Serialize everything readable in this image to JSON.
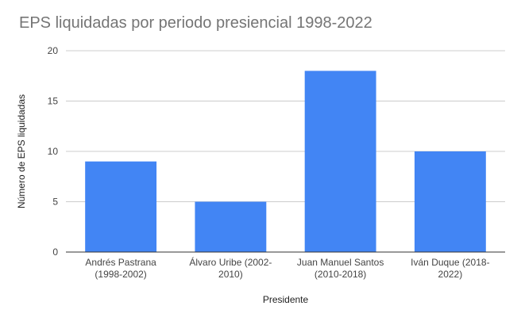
{
  "chart_data": {
    "type": "bar",
    "title": "EPS liquidadas por periodo presiencial 1998-2022",
    "xlabel": "Presidente",
    "ylabel": "Número de EPS liquidadas",
    "categories": [
      [
        "Andrés Pastrana",
        "(1998-2002)"
      ],
      [
        "Álvaro Uribe (2002-",
        "2010)"
      ],
      [
        "Juan Manuel Santos",
        "(2010-2018)"
      ],
      [
        "Iván Duque (2018-",
        "2022)"
      ]
    ],
    "values": [
      9,
      5,
      18,
      10
    ],
    "ylim": [
      0,
      20
    ],
    "yticks": [
      0,
      5,
      10,
      15,
      20
    ],
    "grid": true,
    "legend": "none",
    "colors": {
      "bar": "#4285f4",
      "grid": "#cccccc",
      "axis": "#333333"
    }
  }
}
